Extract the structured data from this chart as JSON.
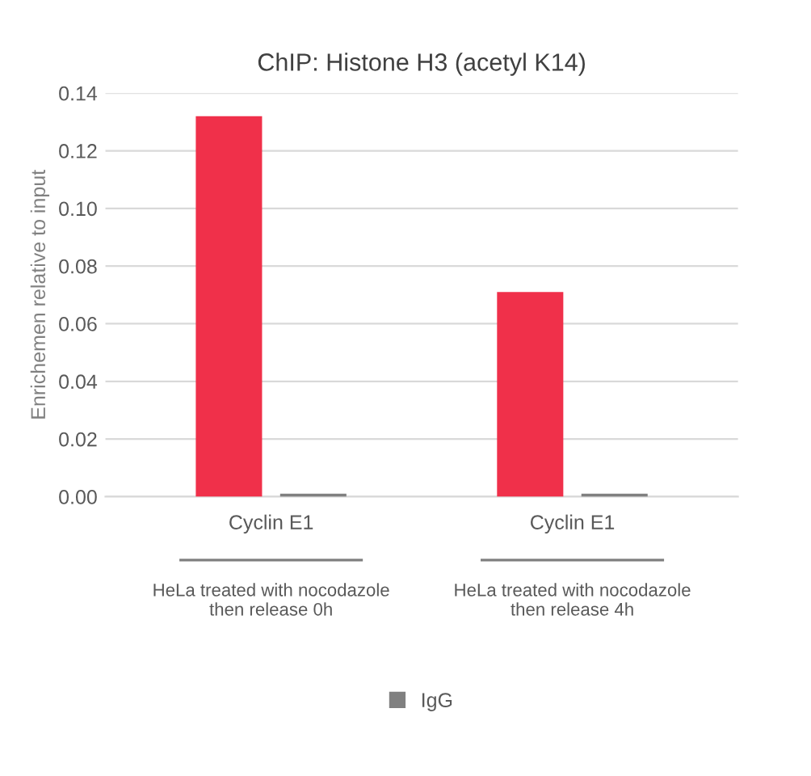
{
  "chart_data": {
    "type": "bar",
    "title": "ChIP: Histone H3 (acetyl K14)",
    "ylabel": "Enrichemen relative to input",
    "categories": [
      "Cyclin E1",
      "Cyclin E1"
    ],
    "series": [
      {
        "color": "#f0304a",
        "values": [
          0.132,
          0.071
        ]
      },
      {
        "name": "IgG",
        "color": "#808080",
        "values": [
          0.001,
          0.001
        ]
      }
    ],
    "annotations": [
      "HeLa treated with nocodazole\nthen release 0h",
      "HeLa treated with nocodazole\nthen release 4h"
    ],
    "ylim": [
      0,
      0.14
    ],
    "yticks": [
      {
        "value": 0,
        "label": "0.00"
      },
      {
        "value": 0.02,
        "label": "0.02"
      },
      {
        "value": 0.04,
        "label": "0.04"
      },
      {
        "value": 0.06,
        "label": "0.06"
      },
      {
        "value": 0.08,
        "label": "0.08"
      },
      {
        "value": 0.1,
        "label": "0.10"
      },
      {
        "value": 0.12,
        "label": "0.12"
      },
      {
        "value": 0.14,
        "label": "0.14"
      }
    ],
    "grid": "y",
    "legend": "bottom"
  }
}
